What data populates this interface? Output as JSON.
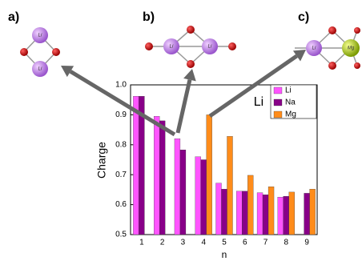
{
  "chart_data": {
    "type": "bar",
    "x_label": "n",
    "y_label": "Charge",
    "categories": [
      "1",
      "2",
      "3",
      "4",
      "5",
      "6",
      "7",
      "8",
      "9"
    ],
    "series": [
      {
        "name": "Li",
        "color": "#ff55ff",
        "values": [
          0.962,
          0.895,
          0.82,
          0.76,
          0.672,
          0.645,
          0.64,
          0.625,
          null
        ]
      },
      {
        "name": "Na",
        "color": "#880088",
        "values": [
          0.962,
          0.88,
          0.783,
          0.75,
          0.652,
          0.645,
          0.633,
          0.628,
          0.638
        ]
      },
      {
        "name": "Mg",
        "color": "#ff8c1a",
        "values": [
          null,
          null,
          null,
          0.9,
          0.828,
          0.698,
          0.66,
          0.642,
          0.652
        ]
      }
    ],
    "ylim": [
      0.5,
      1.0
    ],
    "yticks": [
      0.5,
      0.6,
      0.7,
      0.8,
      0.9,
      {
        "value": 1.0,
        "label": "1.0"
      }
    ],
    "annotations": [
      "Li"
    ],
    "panel_labels": [
      "a)",
      "b)",
      "c)"
    ],
    "atom_labels": [
      "Li",
      "Li",
      "Li",
      "Li",
      "Li",
      "Mg"
    ]
  }
}
